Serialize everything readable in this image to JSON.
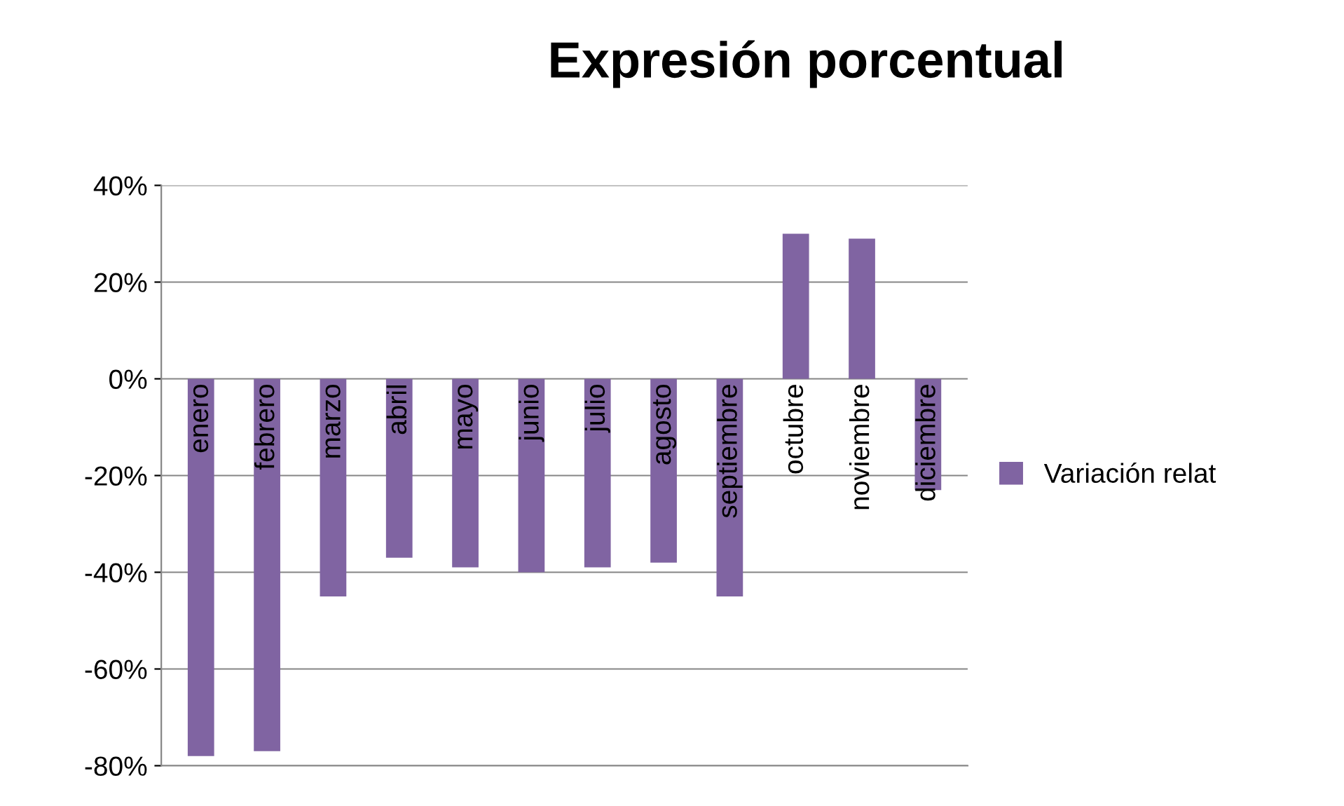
{
  "chart_data": {
    "type": "bar",
    "title": "Expresión porcentual",
    "categories": [
      "enero",
      "febrero",
      "marzo",
      "abril",
      "mayo",
      "junio",
      "julio",
      "agosto",
      "septiembre",
      "octubre",
      "noviembre",
      "diciembre"
    ],
    "series": [
      {
        "name": "Variación relat",
        "color": "#8064a2",
        "values": [
          -78,
          -77,
          -45,
          -37,
          -39,
          -40,
          -39,
          -38,
          -45,
          30,
          29,
          -23
        ]
      }
    ],
    "ylim": [
      -80,
      40
    ],
    "yticks": [
      {
        "value": -80,
        "label": "-80%"
      },
      {
        "value": -60,
        "label": "-60%"
      },
      {
        "value": -40,
        "label": "-40%"
      },
      {
        "value": -20,
        "label": "-20%"
      },
      {
        "value": 0,
        "label": "0%"
      },
      {
        "value": 20,
        "label": "20%"
      },
      {
        "value": 40,
        "label": "40%"
      }
    ],
    "grid": "y",
    "legend": "right"
  }
}
